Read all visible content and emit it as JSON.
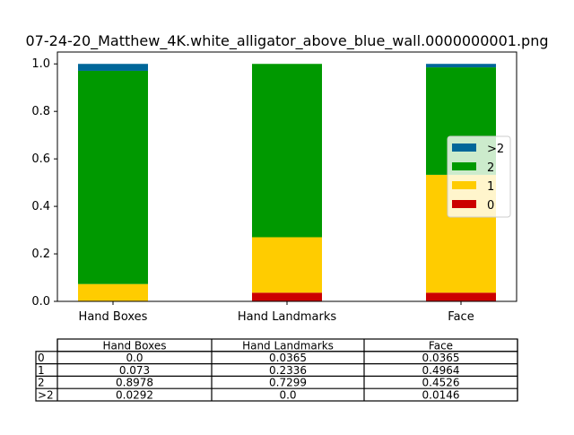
{
  "chart_data": {
    "type": "bar",
    "stacked": true,
    "title": "07-24-20_Matthew_4K.white_alligator_above_blue_wall.0000000001.png",
    "xlabel": "",
    "ylabel": "",
    "ylim": [
      0,
      1.05
    ],
    "yticks": [
      "0.0",
      "0.2",
      "0.4",
      "0.6",
      "0.8",
      "1.0"
    ],
    "ytick_values": [
      0,
      0.2,
      0.4,
      0.6,
      0.8,
      1.0
    ],
    "grid": false,
    "legend_position": "right",
    "categories": [
      "Hand Boxes",
      "Hand Landmarks",
      "Face"
    ],
    "series": [
      {
        "name": "0",
        "color": "#cc0000",
        "values": [
          0.0,
          0.0365,
          0.0365
        ]
      },
      {
        "name": "1",
        "color": "#ffcc00",
        "values": [
          0.073,
          0.2336,
          0.4964
        ]
      },
      {
        "name": "2",
        "color": "#009900",
        "values": [
          0.8978,
          0.7299,
          0.4526
        ]
      },
      {
        "name": ">2",
        "color": "#006699",
        "values": [
          0.0292,
          0.0,
          0.0146
        ]
      }
    ],
    "legend_order": [
      3,
      2,
      1,
      0
    ],
    "table": {
      "columns": [
        "Hand Boxes",
        "Hand Landmarks",
        "Face"
      ],
      "rows": [
        {
          "label": "0",
          "cells": [
            "0.0",
            "0.0365",
            "0.0365"
          ]
        },
        {
          "label": "1",
          "cells": [
            "0.073",
            "0.2336",
            "0.4964"
          ]
        },
        {
          "label": "2",
          "cells": [
            "0.8978",
            "0.7299",
            "0.4526"
          ]
        },
        {
          "label": ">2",
          "cells": [
            "0.0292",
            "0.0",
            "0.0146"
          ]
        }
      ]
    }
  }
}
